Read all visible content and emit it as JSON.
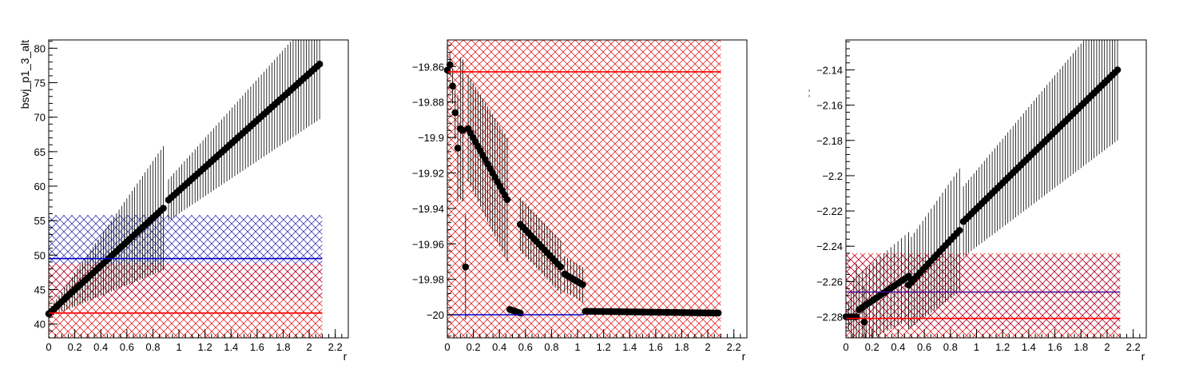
{
  "colors": {
    "red_band": "#dd0000",
    "blue_band": "#1a1aaa",
    "red_line": "#ff0000",
    "blue_line": "#0000cc",
    "purple_line": "#4b0099",
    "points": "#000000"
  },
  "chart_data": [
    {
      "type": "scatter",
      "title": "",
      "xlabel": "r",
      "ylabel": "bsvj_p1_3_alt",
      "xlim": [
        0,
        2.3
      ],
      "ylim": [
        38,
        81.2
      ],
      "x_ticks": [
        0,
        0.2,
        0.4,
        0.6,
        0.8,
        1,
        1.2,
        1.4,
        1.6,
        1.8,
        2,
        2.2
      ],
      "x_tick_labels": [
        "0",
        "0.2",
        "0.4",
        "0.6",
        "0.8",
        "1",
        "1.2",
        "1.4",
        "1.6",
        "1.8",
        "2",
        "2.2"
      ],
      "y_ticks": [
        40,
        45,
        50,
        55,
        60,
        65,
        70,
        75,
        80
      ],
      "y_tick_labels": [
        "40",
        "45",
        "50",
        "55",
        "60",
        "65",
        "70",
        "75",
        "80"
      ],
      "bands": [
        {
          "color": "blue",
          "xmin": 0,
          "xmax": 2.1,
          "ymin": 43.5,
          "ymax": 55.8
        },
        {
          "color": "red",
          "xmin": 0,
          "xmax": 2.1,
          "ymin": 38,
          "ymax": 48.8
        }
      ],
      "hlines": [
        {
          "color": "blue",
          "y": 49.5,
          "xmin": 0,
          "xmax": 2.1
        },
        {
          "color": "red",
          "y": 41.6,
          "xmin": 0,
          "xmax": 2.1
        }
      ],
      "series": [
        {
          "segments": [
            {
              "x0": 0.0,
              "x1": 0.88,
              "y0": 41.5,
              "y1": 56.8,
              "n": 45,
              "err0": 0.5,
              "err1": 9.0
            },
            {
              "x0": 0.92,
              "x1": 2.08,
              "y0": 58.0,
              "y1": 77.7,
              "n": 58,
              "err0": 3.0,
              "err1": 8.0
            }
          ]
        }
      ]
    },
    {
      "type": "scatter",
      "title": "",
      "xlabel": "r",
      "ylabel": "",
      "xlim": [
        0,
        2.3
      ],
      "ylim": [
        -20.013,
        -19.845
      ],
      "x_ticks": [
        0,
        0.2,
        0.4,
        0.6,
        0.8,
        1,
        1.2,
        1.4,
        1.6,
        1.8,
        2,
        2.2
      ],
      "x_tick_labels": [
        "0",
        "0.2",
        "0.4",
        "0.6",
        "0.8",
        "1",
        "1.2",
        "1.4",
        "1.6",
        "1.8",
        "2",
        "2.2"
      ],
      "y_ticks": [
        -20,
        -19.98,
        -19.96,
        -19.94,
        -19.92,
        -19.9,
        -19.88,
        -19.86
      ],
      "y_tick_labels": [
        "−20",
        "−19.98",
        "−19.96",
        "−19.94",
        "−19.92",
        "−19.9",
        "−19.88",
        "−19.86"
      ],
      "bands": [
        {
          "color": "red",
          "xmin": 0,
          "xmax": 2.1,
          "ymin": -20.013,
          "ymax": -19.845
        }
      ],
      "hlines": [
        {
          "color": "red",
          "y": -19.863,
          "xmin": 0,
          "xmax": 2.1
        },
        {
          "color": "blue",
          "y": -20.0,
          "xmin": 0,
          "xmax": 1.05
        }
      ],
      "series": [
        {
          "segments": [
            {
              "x0": 0.0,
              "x1": 0.02,
              "y0": -19.862,
              "y1": -19.859,
              "n": 2,
              "err0": 0.005,
              "err1": 0.006
            },
            {
              "x0": 0.04,
              "x1": 0.06,
              "y0": -19.871,
              "y1": -19.886,
              "n": 2,
              "err0": 0.01,
              "err1": 0.015
            },
            {
              "x0": 0.08,
              "x1": 0.08,
              "y0": -19.906,
              "y1": -19.906,
              "n": 1,
              "err0": 0.03,
              "err1": 0.03
            },
            {
              "x0": 0.1,
              "x1": 0.12,
              "y0": -19.895,
              "y1": -19.896,
              "n": 2,
              "err0": 0.04,
              "err1": 0.04
            },
            {
              "x0": 0.14,
              "x1": 0.14,
              "y0": -19.973,
              "y1": -19.973,
              "n": 1,
              "err0": 0.03,
              "err1": 0.03
            },
            {
              "x0": 0.16,
              "x1": 0.46,
              "y0": -19.895,
              "y1": -19.935,
              "n": 17,
              "err0": 0.03,
              "err1": 0.035
            },
            {
              "x0": 0.48,
              "x1": 0.56,
              "y0": -19.997,
              "y1": -19.999,
              "n": 5,
              "err0": 0.001,
              "err1": 0.001
            },
            {
              "x0": 0.56,
              "x1": 0.87,
              "y0": -19.949,
              "y1": -19.973,
              "n": 16,
              "err0": 0.015,
              "err1": 0.015
            },
            {
              "x0": 0.9,
              "x1": 1.04,
              "y0": -19.977,
              "y1": -19.983,
              "n": 7,
              "err0": 0.01,
              "err1": 0.01
            },
            {
              "x0": 1.06,
              "x1": 2.08,
              "y0": -19.998,
              "y1": -19.999,
              "n": 52,
              "err0": 0.0005,
              "err1": 0.0005
            }
          ]
        }
      ]
    },
    {
      "type": "scatter",
      "title": "",
      "xlabel": "r",
      "ylabel": "",
      "xlim": [
        0,
        2.3
      ],
      "ylim": [
        -2.292,
        -2.123
      ],
      "x_ticks": [
        0,
        0.2,
        0.4,
        0.6,
        0.8,
        1,
        1.2,
        1.4,
        1.6,
        1.8,
        2,
        2.2
      ],
      "x_tick_labels": [
        "0",
        "0.2",
        "0.4",
        "0.6",
        "0.8",
        "1",
        "1.2",
        "1.4",
        "1.6",
        "1.8",
        "2",
        "2.2"
      ],
      "y_ticks": [
        -2.28,
        -2.26,
        -2.24,
        -2.22,
        -2.2,
        -2.18,
        -2.16,
        -2.14
      ],
      "y_tick_labels": [
        "−2.28",
        "−2.26",
        "−2.24",
        "−2.22",
        "−2.2",
        "−2.18",
        "−2.16",
        "−2.14"
      ],
      "bands": [
        {
          "color": "blue",
          "xmin": 0,
          "xmax": 2.1,
          "ymin": -2.287,
          "ymax": -2.245
        },
        {
          "color": "red",
          "xmin": 0,
          "xmax": 2.1,
          "ymin": -2.292,
          "ymax": -2.244
        }
      ],
      "hlines": [
        {
          "color": "purple",
          "y": -2.266,
          "xmin": 0,
          "xmax": 2.1
        },
        {
          "color": "red",
          "y": -2.281,
          "xmin": 0,
          "xmax": 2.1
        }
      ],
      "series": [
        {
          "segments": [
            {
              "x0": 0.0,
              "x1": 0.08,
              "y0": -2.28,
              "y1": -2.28,
              "n": 5,
              "err0": 0.0,
              "err1": 0.03
            },
            {
              "x0": 0.14,
              "x1": 0.14,
              "y0": -2.283,
              "y1": -2.283,
              "n": 1,
              "err0": 0.02,
              "err1": 0.02
            },
            {
              "x0": 0.1,
              "x1": 0.48,
              "y0": -2.276,
              "y1": -2.257,
              "n": 15,
              "err0": 0.02,
              "err1": 0.025
            },
            {
              "x0": 0.48,
              "x1": 0.87,
              "y0": -2.262,
              "y1": -2.231,
              "n": 19,
              "err0": 0.025,
              "err1": 0.035
            },
            {
              "x0": 0.9,
              "x1": 2.08,
              "y0": -2.226,
              "y1": -2.14,
              "n": 60,
              "err0": 0.02,
              "err1": 0.04
            }
          ]
        }
      ]
    }
  ]
}
